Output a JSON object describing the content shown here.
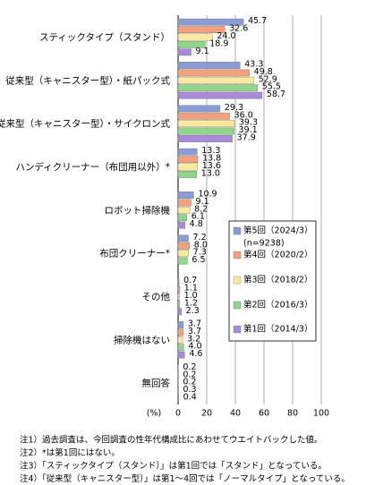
{
  "chart_data": {
    "type": "bar",
    "orientation": "horizontal",
    "categories": [
      "スティックタイプ（スタンド）",
      "従来型（キャニスター型）・紙パック式",
      "従来型（キャニスター型）・サイクロン式",
      "ハンディクリーナー（布団用以外）*",
      "ロボット掃除機",
      "布団クリーナー*",
      "その他",
      "掃除機はない",
      "無回答"
    ],
    "series": [
      {
        "name": "第5回（2024/3）",
        "color": "#8b9bd3",
        "values": [
          45.7,
          43.3,
          29.3,
          13.3,
          10.9,
          7.2,
          0.7,
          3.7,
          0.2
        ],
        "value_labels": [
          "45.7",
          "43.3",
          "29.3",
          "13.3",
          "10.9",
          "7.2",
          "0.7",
          "3.7",
          "0.2"
        ]
      },
      {
        "name": "第4回（2020/2）",
        "color": "#f2a07e",
        "values": [
          32.6,
          49.8,
          36.0,
          13.8,
          9.1,
          8.0,
          1.1,
          3.7,
          0.2
        ],
        "value_labels": [
          "32.6",
          "49.8",
          "36.0",
          "13.8",
          "9.1",
          "8.0",
          "1.1",
          "3.7",
          "0.2"
        ]
      },
      {
        "name": "第3回（2018/2）",
        "color": "#ffe9a0",
        "values": [
          24.0,
          52.9,
          39.3,
          13.6,
          8.2,
          7.3,
          1.0,
          3.2,
          0.2
        ],
        "value_labels": [
          "24.0",
          "52.9",
          "39.3",
          "13.6",
          "8.2",
          "7.3",
          "1.0",
          "3.2",
          "0.2"
        ]
      },
      {
        "name": "第2回（2016/3）",
        "color": "#8fd68a",
        "values": [
          18.9,
          55.5,
          39.1,
          13.0,
          6.1,
          6.5,
          1.2,
          4.0,
          0.3
        ],
        "value_labels": [
          "18.9",
          "55.5",
          "39.1",
          "13.0",
          "6.1",
          "6.5",
          "1.2",
          "4.0",
          "0.3"
        ]
      },
      {
        "name": "第1回（2014/3）",
        "color": "#a98ad8",
        "values": [
          9.1,
          58.7,
          37.9,
          null,
          4.8,
          null,
          2.3,
          4.6,
          0.4
        ],
        "value_labels": [
          "9.1",
          "58.7",
          "37.9",
          null,
          "4.8",
          null,
          "2.3",
          "4.6",
          "0.4"
        ]
      }
    ],
    "legend_note": "(n=9238)",
    "xlabel": "(%)",
    "xlim": [
      0,
      100
    ],
    "xticks": [
      0,
      20,
      40,
      60,
      80,
      100
    ],
    "grid": true,
    "notes": [
      "注1）過去調査は、今回調査の性年代構成比にあわせてウエイトバックした値。",
      "注2）*は第1回にはない。",
      "注3）「スティックタイプ（スタンド）」は第1回では「スタンド」となっている。",
      "注4）「従来型（キャニスター型）」は第1～4回では「ノーマルタイプ」となっている。"
    ]
  }
}
